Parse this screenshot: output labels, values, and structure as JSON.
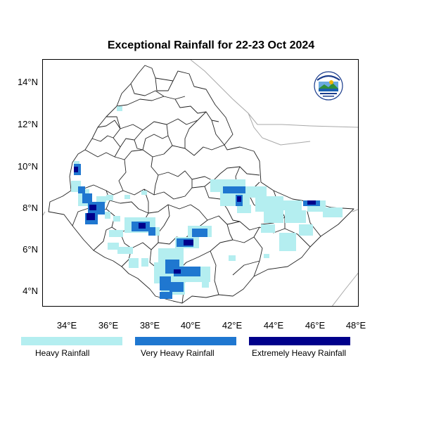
{
  "title": "Exceptional Rainfall for 22-23 Oct 2024",
  "y_ticks": [
    "14°N",
    "12°N",
    "10°N",
    "8°N",
    "6°N",
    "4°N"
  ],
  "x_ticks": [
    "34°E",
    "36°E",
    "38°E",
    "40°E",
    "42°E",
    "44°E",
    "46°E",
    "48°E"
  ],
  "legend": [
    {
      "label": "Heavy Rainfall",
      "color": "#b4eef0"
    },
    {
      "label": "Very Heavy Rainfall",
      "color": "#1f77d0"
    },
    {
      "label": "Extremely Heavy Rainfall",
      "color": "#00008b"
    }
  ],
  "logo": {
    "name": "meteorology-institute-logo"
  }
}
